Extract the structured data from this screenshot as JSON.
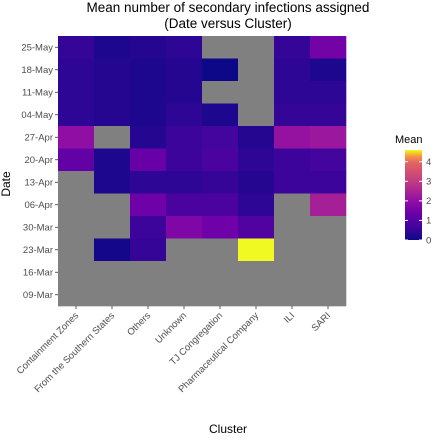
{
  "chart_data": {
    "type": "heatmap",
    "title": "Mean number of secondary infections assigned",
    "subtitle": "(Date versus Cluster)",
    "xlabel": "Cluster",
    "ylabel": "Date",
    "x": [
      "Containment Zones",
      "From the Southern States",
      "Others",
      "Unknown",
      "TJ Congregation",
      "Pharmaceutical Company",
      "ILI",
      "SARI"
    ],
    "y": [
      "25-May",
      "18-May",
      "11-May",
      "04-May",
      "27-Apr",
      "20-Apr",
      "13-Apr",
      "06-Apr",
      "30-Mar",
      "23-Mar",
      "16-Mar",
      "09-Mar"
    ],
    "values": [
      [
        0.5,
        0.2,
        0.3,
        0.4,
        null,
        null,
        0.5,
        1.5
      ],
      [
        0.4,
        0.3,
        0.2,
        0.3,
        0.0,
        null,
        0.4,
        0.2
      ],
      [
        0.4,
        0.3,
        0.2,
        0.3,
        null,
        null,
        0.4,
        0.4
      ],
      [
        0.4,
        0.3,
        0.2,
        0.4,
        0.2,
        null,
        0.5,
        0.5
      ],
      [
        2.0,
        null,
        0.3,
        0.6,
        0.7,
        0.3,
        2.1,
        2.2
      ],
      [
        1.2,
        0.2,
        1.3,
        0.6,
        0.8,
        0.4,
        0.6,
        0.7
      ],
      [
        null,
        0.2,
        0.4,
        0.4,
        0.5,
        0.3,
        0.6,
        0.6
      ],
      [
        null,
        null,
        1.4,
        0.8,
        0.8,
        0.4,
        null,
        2.4
      ],
      [
        null,
        null,
        0.6,
        1.7,
        1.4,
        0.9,
        null,
        null
      ],
      [
        null,
        0.1,
        0.5,
        null,
        null,
        4.6,
        null,
        null
      ],
      [
        null,
        null,
        null,
        null,
        null,
        null,
        null,
        null
      ],
      [
        null,
        null,
        null,
        null,
        null,
        null,
        null,
        null
      ]
    ],
    "na_color": "#808080",
    "colorscale": "plasma",
    "legend": {
      "title": "Mean",
      "ticks": [
        "4",
        "3",
        "2",
        "1",
        "0"
      ],
      "tick_values": [
        4,
        3,
        2,
        1,
        0
      ],
      "range": [
        0,
        4.6
      ],
      "placement": "right"
    },
    "grid": false
  }
}
